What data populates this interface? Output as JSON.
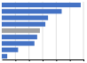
{
  "chart_data": {
    "type": "bar",
    "orientation": "horizontal",
    "values": [
      29,
      22,
      17,
      16,
      14,
      13,
      12,
      6,
      2
    ],
    "colors": [
      "#4472c4",
      "#4472c4",
      "#4472c4",
      "#4472c4",
      "#a0a0a0",
      "#4472c4",
      "#4472c4",
      "#4472c4",
      "#4472c4"
    ],
    "xlim": [
      0,
      30
    ],
    "xticks": [
      5,
      10,
      15,
      20,
      25,
      30
    ],
    "grid": true,
    "tick_labels": false
  }
}
